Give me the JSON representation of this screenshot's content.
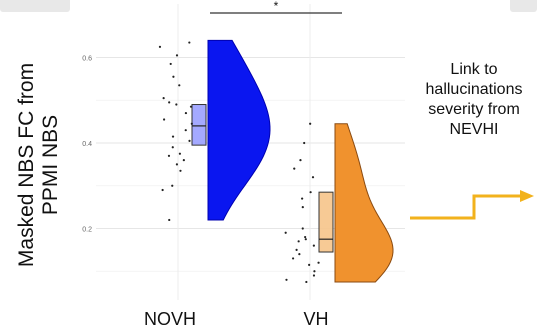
{
  "chart_data": {
    "type": "violin",
    "ylabel": "Masked NBS FC from\nPPMI NBS",
    "categories": [
      "NOVH",
      "VH"
    ],
    "yticks": [
      0.2,
      0.4,
      0.6
    ],
    "ylim": [
      0.04,
      0.67
    ],
    "grid": true,
    "significance": "*",
    "groups": [
      {
        "name": "NOVH",
        "color": "#0a16f0",
        "box": {
          "q1": 0.395,
          "median": 0.44,
          "q3": 0.49
        },
        "violin_range": [
          0.22,
          0.64
        ],
        "points": [
          0.635,
          0.625,
          0.605,
          0.585,
          0.555,
          0.535,
          0.505,
          0.495,
          0.49,
          0.485,
          0.47,
          0.455,
          0.445,
          0.43,
          0.415,
          0.405,
          0.39,
          0.375,
          0.37,
          0.36,
          0.35,
          0.335,
          0.3,
          0.29,
          0.22
        ]
      },
      {
        "name": "VH",
        "color": "#f0922e",
        "box": {
          "q1": 0.145,
          "median": 0.175,
          "q3": 0.285
        },
        "violin_range": [
          0.075,
          0.445
        ],
        "points": [
          0.445,
          0.4,
          0.36,
          0.34,
          0.32,
          0.285,
          0.27,
          0.25,
          0.2,
          0.19,
          0.18,
          0.175,
          0.17,
          0.16,
          0.15,
          0.14,
          0.13,
          0.12,
          0.115,
          0.1,
          0.09,
          0.08,
          0.075
        ]
      }
    ]
  },
  "annotation": {
    "text": "Link to\nhallucinations\nseverity from\nNEVHI",
    "arrow_color": "#f2b21c"
  }
}
